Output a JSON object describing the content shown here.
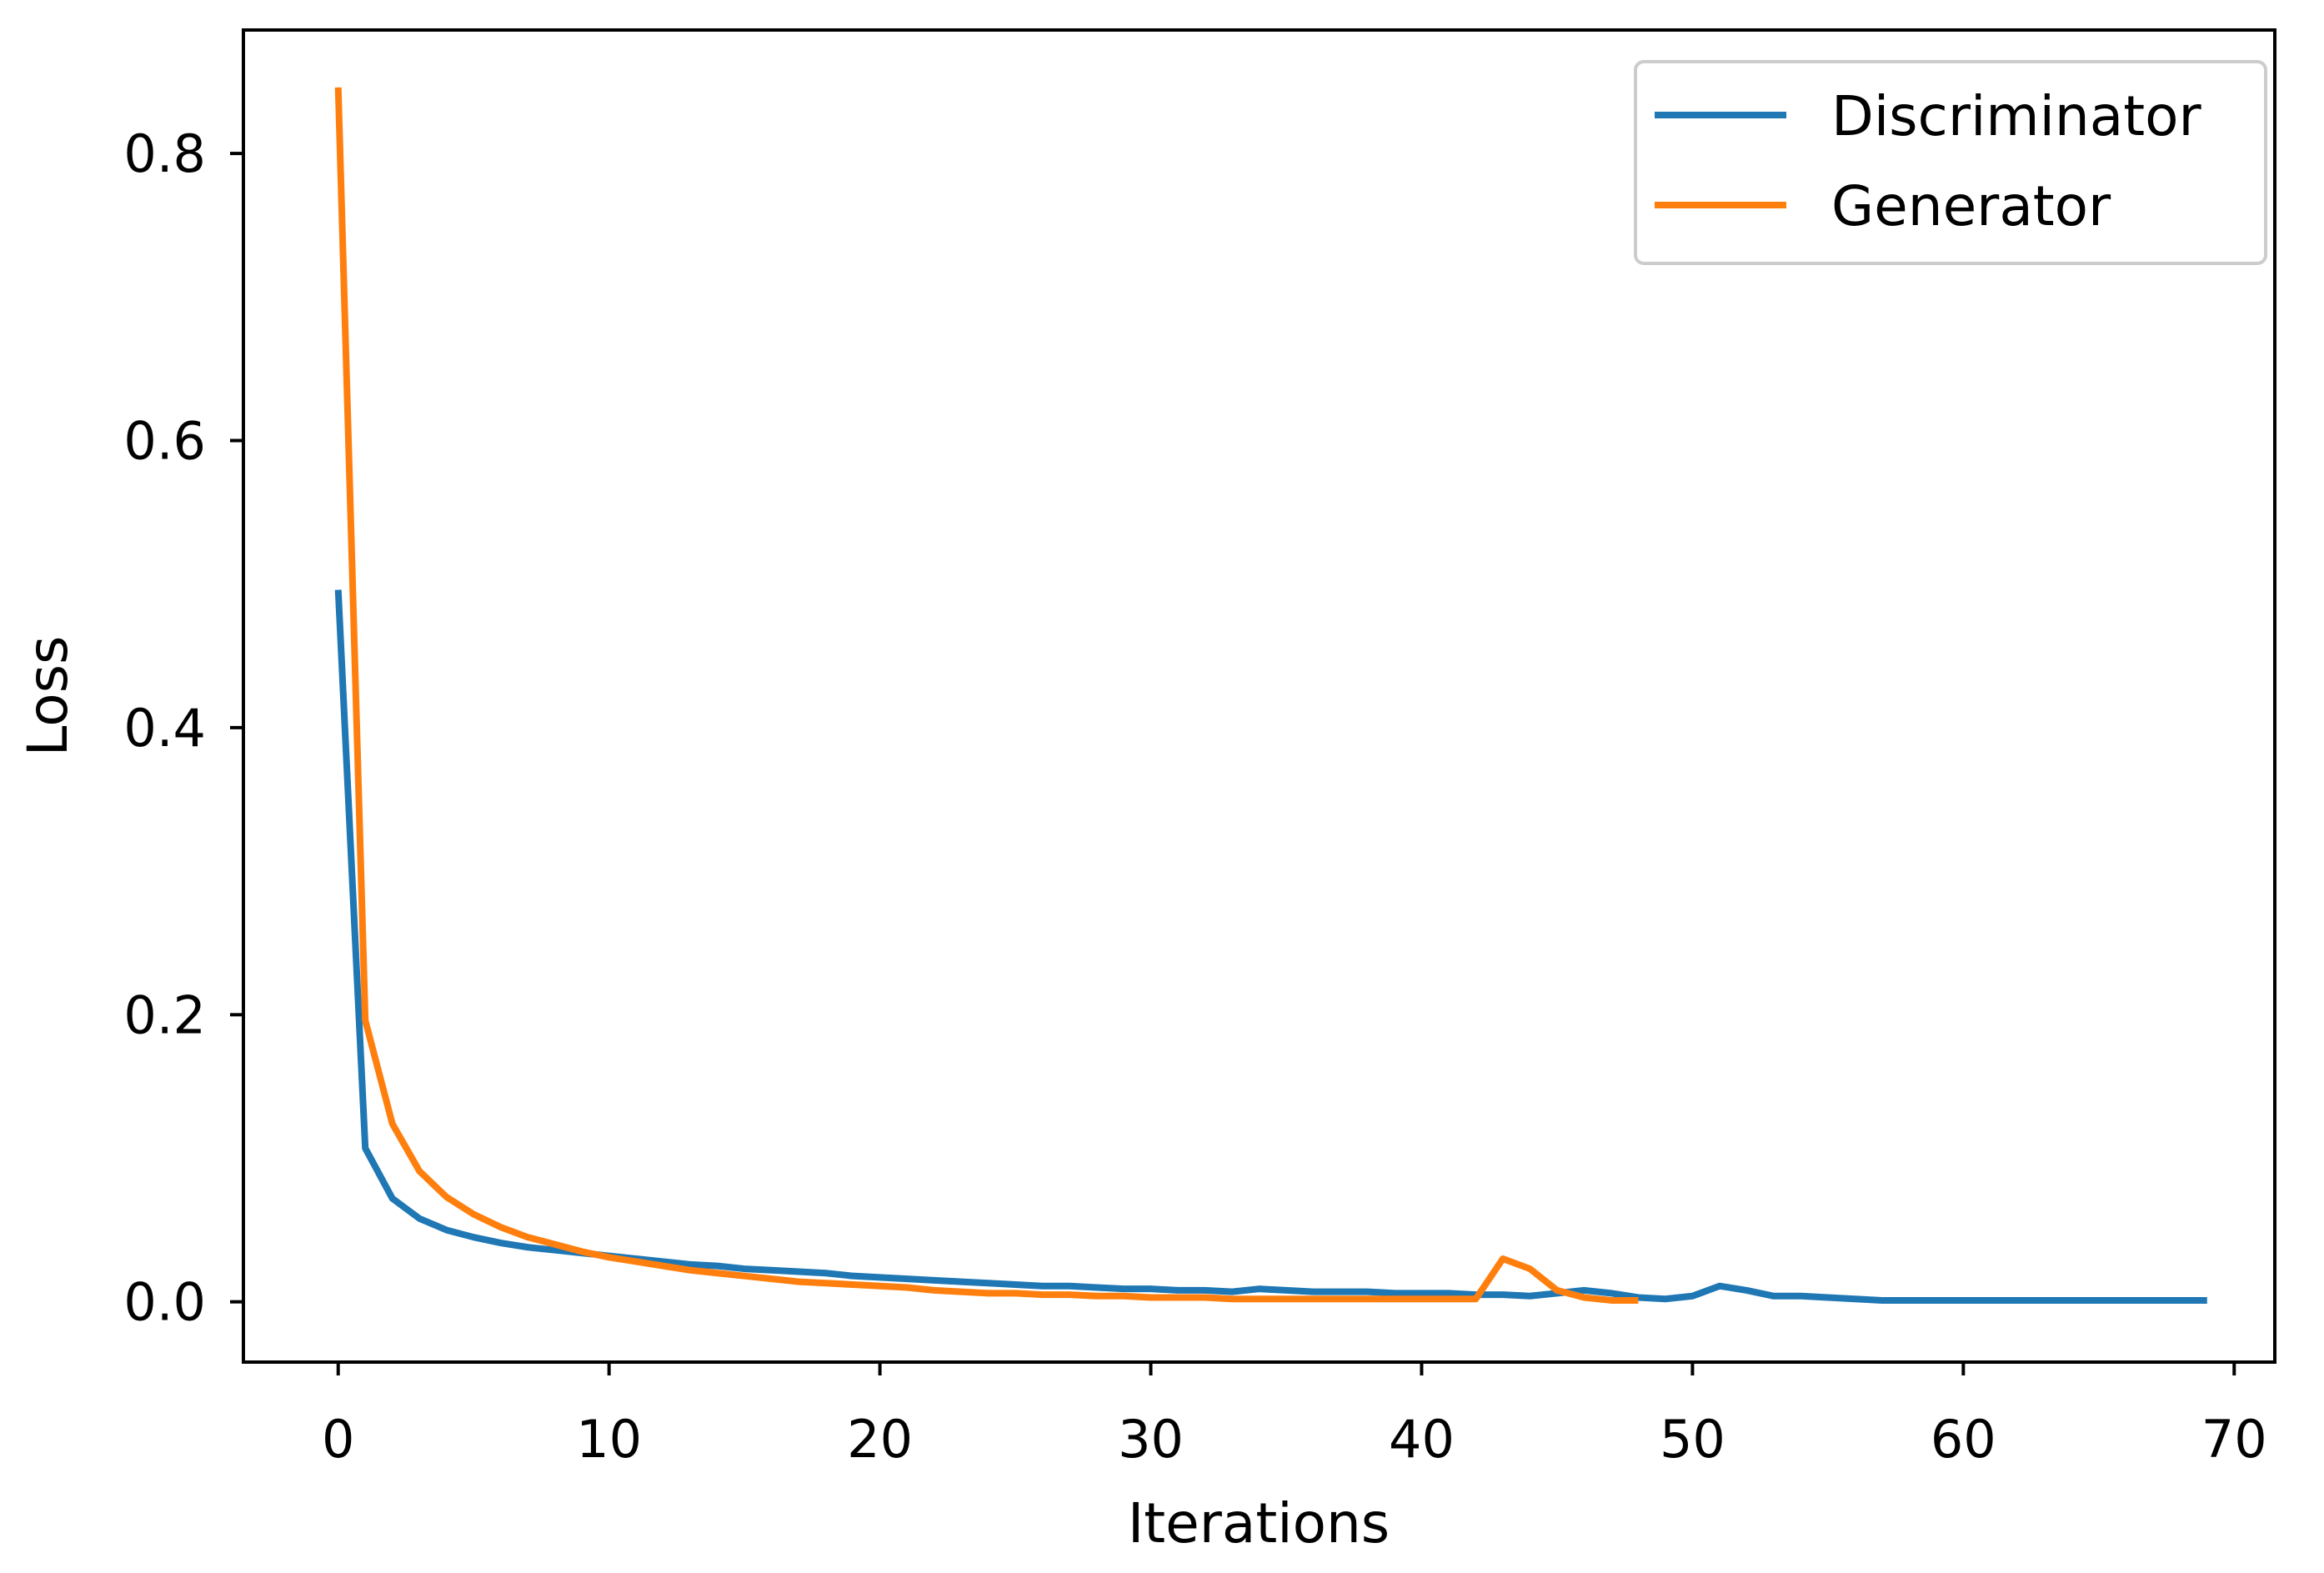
{
  "chart_data": {
    "type": "line",
    "title": "",
    "xlabel": "Iterations",
    "ylabel": "Loss",
    "xlim": [
      -3.5,
      71.5
    ],
    "ylim": [
      -0.042,
      0.886
    ],
    "xticks": [
      0,
      10,
      20,
      30,
      40,
      50,
      60,
      70
    ],
    "xtick_labels": [
      "0",
      "10",
      "20",
      "30",
      "40",
      "50",
      "60",
      "70"
    ],
    "yticks": [
      0.0,
      0.2,
      0.4,
      0.6,
      0.8
    ],
    "ytick_labels": [
      "0.0",
      "0.2",
      "0.4",
      "0.6",
      "0.8"
    ],
    "grid": false,
    "legend_position": "top-right",
    "series": [
      {
        "name": "Discriminator",
        "color": "#1f77b4",
        "x": [
          0,
          1,
          2,
          3,
          4,
          5,
          6,
          7,
          8,
          9,
          10,
          11,
          12,
          13,
          14,
          15,
          16,
          17,
          18,
          19,
          20,
          21,
          22,
          23,
          24,
          25,
          26,
          27,
          28,
          29,
          30,
          31,
          32,
          33,
          34,
          35,
          36,
          37,
          38,
          39,
          40,
          41,
          42,
          43,
          44,
          45,
          46,
          47,
          48,
          49,
          50,
          51,
          52,
          53,
          54,
          55,
          56,
          57,
          58,
          59,
          60,
          61,
          62,
          63,
          64,
          65,
          66,
          67,
          68,
          69
        ],
        "y": [
          0.496,
          0.107,
          0.072,
          0.058,
          0.05,
          0.045,
          0.041,
          0.038,
          0.036,
          0.034,
          0.032,
          0.03,
          0.028,
          0.026,
          0.025,
          0.023,
          0.022,
          0.021,
          0.02,
          0.018,
          0.017,
          0.016,
          0.015,
          0.014,
          0.013,
          0.012,
          0.011,
          0.011,
          0.01,
          0.009,
          0.009,
          0.008,
          0.008,
          0.007,
          0.009,
          0.008,
          0.007,
          0.007,
          0.007,
          0.006,
          0.006,
          0.006,
          0.005,
          0.005,
          0.004,
          0.006,
          0.008,
          0.006,
          0.003,
          0.002,
          0.004,
          0.011,
          0.008,
          0.004,
          0.004,
          0.003,
          0.002,
          0.001,
          0.001,
          0.001,
          0.001,
          0.001,
          0.001,
          0.001,
          0.001,
          0.001,
          0.001,
          0.001,
          0.001,
          0.001
        ]
      },
      {
        "name": "Generator",
        "color": "#ff7f0e",
        "x": [
          0,
          1,
          2,
          3,
          4,
          5,
          6,
          7,
          8,
          9,
          10,
          11,
          12,
          13,
          14,
          15,
          16,
          17,
          18,
          19,
          20,
          21,
          22,
          23,
          24,
          25,
          26,
          27,
          28,
          29,
          30,
          31,
          32,
          33,
          34,
          35,
          36,
          37,
          38,
          39,
          40,
          41,
          42,
          43,
          44,
          45,
          46,
          47,
          48
        ],
        "y": [
          0.846,
          0.196,
          0.124,
          0.091,
          0.073,
          0.061,
          0.052,
          0.045,
          0.04,
          0.035,
          0.031,
          0.028,
          0.025,
          0.022,
          0.02,
          0.018,
          0.016,
          0.014,
          0.013,
          0.012,
          0.011,
          0.01,
          0.008,
          0.007,
          0.006,
          0.006,
          0.005,
          0.005,
          0.004,
          0.004,
          0.003,
          0.003,
          0.003,
          0.002,
          0.002,
          0.002,
          0.002,
          0.002,
          0.002,
          0.002,
          0.002,
          0.002,
          0.002,
          0.03,
          0.023,
          0.008,
          0.003,
          0.001,
          0.001
        ]
      }
    ]
  }
}
